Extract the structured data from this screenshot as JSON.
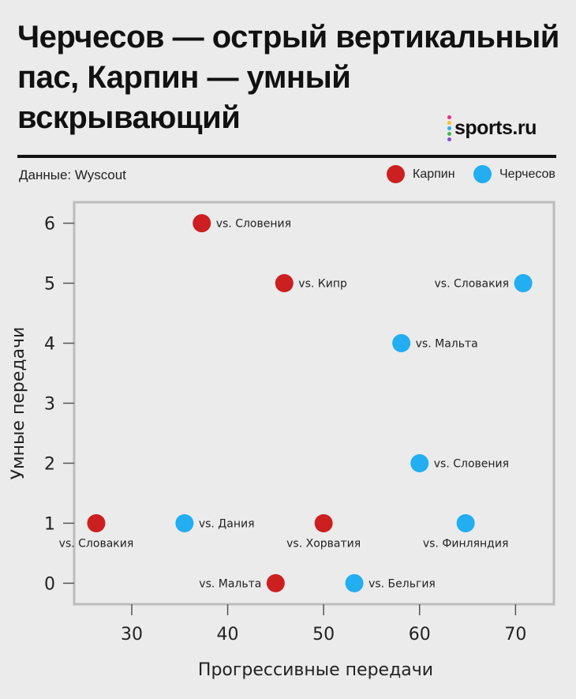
{
  "header": {
    "title_lines": [
      "Черчесов — острый вертикальный",
      "пас, Карпин — умный",
      "вскрывающий"
    ],
    "logo_text": "sports.ru",
    "logo_dot_colors": [
      "#e8308a",
      "#f7c525",
      "#25b3e8",
      "#3dbb4a",
      "#8b4cc7"
    ],
    "source": "Данные: Wyscout"
  },
  "colors": {
    "karpin": "#cc1f1f",
    "cherchesov": "#22aef0"
  },
  "chart_data": {
    "type": "scatter",
    "xlabel": "Прогрессивные передачи",
    "ylabel": "Умные передачи",
    "xlim": [
      24,
      74
    ],
    "ylim": [
      -0.35,
      6.35
    ],
    "xticks": [
      30,
      40,
      50,
      60,
      70
    ],
    "yticks": [
      0,
      1,
      2,
      3,
      4,
      5,
      6
    ],
    "legend_position": "top-right",
    "series": [
      {
        "name": "Карпин",
        "color": "#cc1f1f",
        "points": [
          {
            "x": 37.3,
            "y": 6,
            "label": "vs. Словения"
          },
          {
            "x": 45.9,
            "y": 5,
            "label": "vs. Кипр"
          },
          {
            "x": 26.3,
            "y": 1,
            "label": "vs. Словакия"
          },
          {
            "x": 50,
            "y": 1,
            "label": "vs. Хорватия"
          },
          {
            "x": 45,
            "y": 0,
            "label": "vs. Мальта"
          }
        ]
      },
      {
        "name": "Черчесов",
        "color": "#22aef0",
        "points": [
          {
            "x": 70.8,
            "y": 5,
            "label": "vs. Словакия"
          },
          {
            "x": 58.1,
            "y": 4,
            "label": "vs. Мальта"
          },
          {
            "x": 60,
            "y": 2,
            "label": "vs. Словения"
          },
          {
            "x": 35.5,
            "y": 1,
            "label": "vs. Дания"
          },
          {
            "x": 64.8,
            "y": 1,
            "label": "vs. Финляндия"
          },
          {
            "x": 53.2,
            "y": 0,
            "label": "vs. Бельгия"
          }
        ]
      }
    ]
  }
}
